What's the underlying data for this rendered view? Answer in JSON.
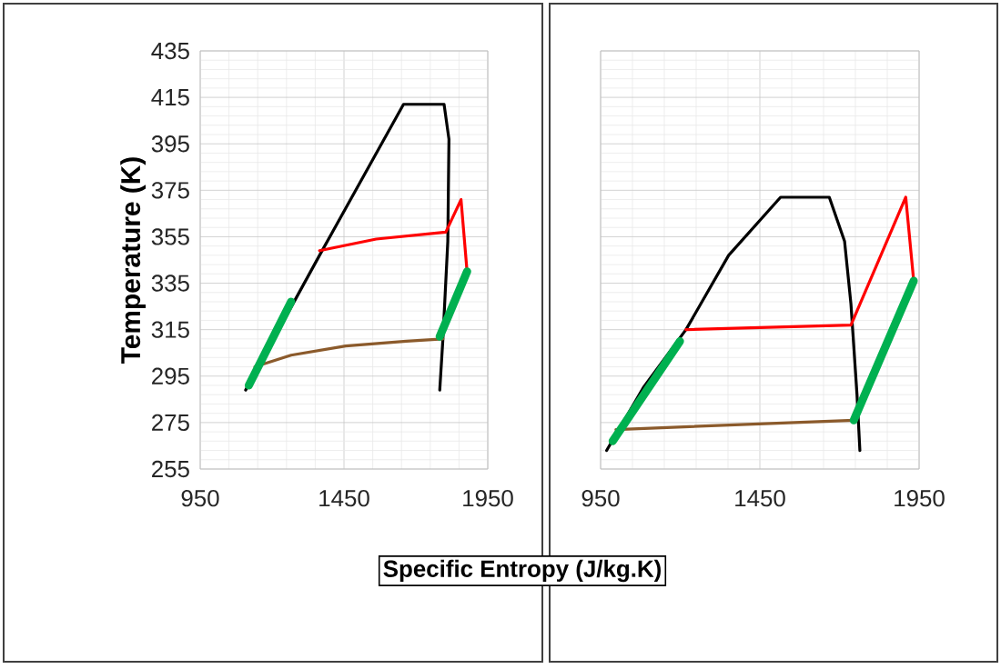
{
  "chart_data": [
    {
      "type": "line",
      "xlabel": "Specific Entropy (J/kg.K)",
      "ylabel": "Temperature (K)",
      "xlim": [
        950,
        1950
      ],
      "ylim": [
        255,
        435
      ],
      "xticks": [
        950,
        1450,
        1950
      ],
      "yticks": [
        255,
        275,
        295,
        315,
        335,
        355,
        375,
        395,
        415,
        435
      ],
      "grid": true,
      "marker": "none",
      "line_style": "solid",
      "series": [
        {
          "color": "#000000",
          "x": [
            1108,
            1365,
            1657,
            1798,
            1815,
            1811,
            1794,
            1783
          ],
          "values": [
            289,
            347,
            412,
            412,
            397,
            353,
            311,
            289
          ]
        },
        {
          "color": "#ff0000",
          "x": [
            1365,
            1562,
            1804,
            1857,
            1878
          ],
          "values": [
            349,
            354,
            357,
            371,
            340
          ]
        },
        {
          "color": "#8b5a2b",
          "x": [
            1140,
            1266,
            1456,
            1667,
            1794
          ],
          "values": [
            299,
            304,
            308,
            310,
            311
          ]
        },
        {
          "color": "#00b050",
          "x": [
            1119,
            1266
          ],
          "values": [
            291,
            327
          ]
        },
        {
          "color": "#00b050",
          "x": [
            1783,
            1878
          ],
          "values": [
            312,
            340
          ]
        }
      ]
    },
    {
      "type": "line",
      "xlim": [
        950,
        1950
      ],
      "ylim": [
        255,
        435
      ],
      "xticks": [
        950,
        1450,
        1950
      ],
      "yticks": [
        255,
        275,
        295,
        315,
        335,
        355,
        375,
        395,
        415,
        435
      ],
      "tick_labels": "x",
      "grid": true,
      "marker": "none",
      "line_style": "solid",
      "series": [
        {
          "color": "#000000",
          "x": [
            969,
            1084,
            1218,
            1352,
            1515,
            1668,
            1716,
            1736,
            1755,
            1764
          ],
          "values": [
            263,
            290,
            315,
            347,
            372,
            372,
            353,
            326,
            287,
            263
          ]
        },
        {
          "color": "#ff0000",
          "x": [
            1218,
            1736,
            1908,
            1933
          ],
          "values": [
            315,
            317,
            372,
            336
          ]
        },
        {
          "color": "#8b5a2b",
          "x": [
            998,
            1745
          ],
          "values": [
            272,
            276
          ]
        },
        {
          "color": "#00b050",
          "x": [
            988,
            1199
          ],
          "values": [
            267,
            310
          ]
        },
        {
          "color": "#00b050",
          "x": [
            1745,
            1933
          ],
          "values": [
            276,
            336
          ]
        }
      ]
    }
  ]
}
